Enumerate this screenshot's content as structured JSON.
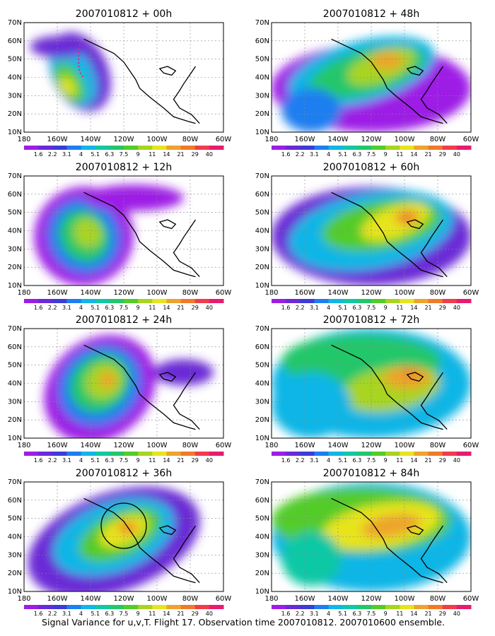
{
  "caption": "Signal Variance for u,v,T. Flight 17. Observation time 2007010812. 2007010600 ensemble.",
  "lat_labels": [
    "70N",
    "60N",
    "50N",
    "40N",
    "30N",
    "20N",
    "10N"
  ],
  "lon_labels": [
    "180",
    "160W",
    "140W",
    "120W",
    "100W",
    "80W",
    "60W"
  ],
  "colorbar": {
    "labels": [
      "1.6",
      "2.2",
      "3.1",
      "4",
      "5.1",
      "6.3",
      "7.5",
      "9",
      "11",
      "14",
      "21",
      "29",
      "40"
    ],
    "colors": [
      "#9d1de6",
      "#6a2bd6",
      "#3c3cd8",
      "#1e7ef0",
      "#10b6e6",
      "#11c8a5",
      "#22c76a",
      "#53cc2a",
      "#a8d420",
      "#e7e41e",
      "#eda42c",
      "#f07a29",
      "#f13c4c",
      "#e81c6f"
    ]
  },
  "panels": [
    {
      "title": "2007010812 + 00h"
    },
    {
      "title": "2007010812 + 48h"
    },
    {
      "title": "2007010812 + 12h"
    },
    {
      "title": "2007010812 + 60h"
    },
    {
      "title": "2007010812 + 24h"
    },
    {
      "title": "2007010812 + 72h"
    },
    {
      "title": "2007010812 + 36h"
    },
    {
      "title": "2007010812 + 84h"
    }
  ]
}
